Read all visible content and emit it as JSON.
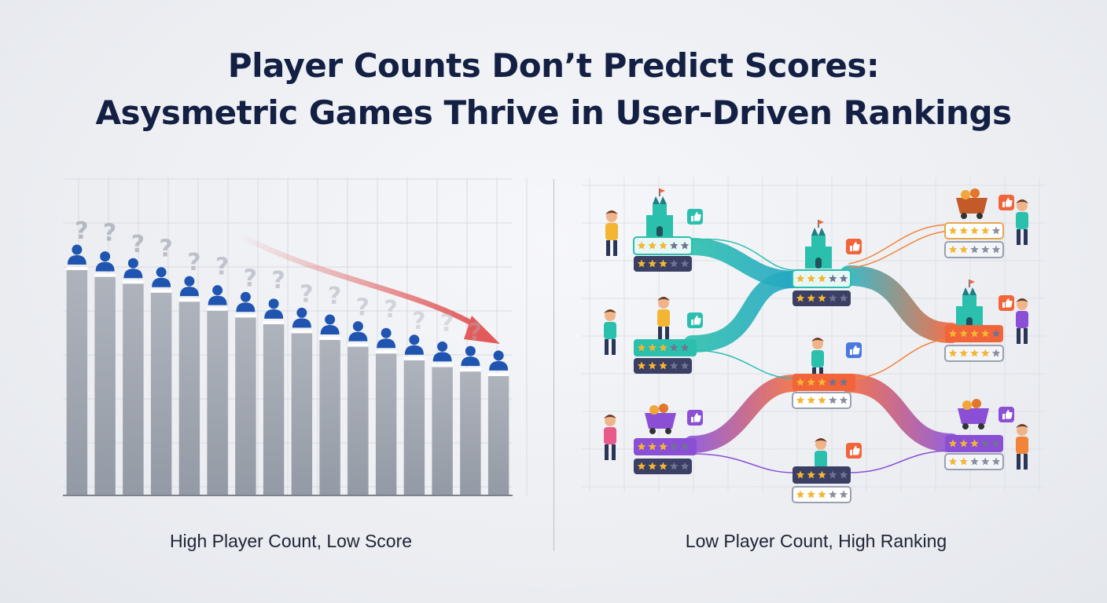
{
  "title": {
    "line1": "Player Counts Don’t Predict Scores:",
    "line2": "Asysmetric Games Thrive in User-Driven Rankings"
  },
  "left_panel": {
    "caption": "High Player Count, Low Score",
    "question_mark": "?",
    "bar_count": 16,
    "trend": "decreasing",
    "bar_color": "#a3a8b2",
    "player_icon_color": "#1f55b0",
    "arrow_color": "#e06060"
  },
  "right_panel": {
    "caption": "Low Player Count, High Ranking",
    "icons": [
      "castle-icon",
      "thumbs-up-icon",
      "player-figure-icon",
      "mine-cart-icon",
      "star-rating-icon"
    ],
    "colors": {
      "teal": "#2bbfae",
      "orange": "#f2643a",
      "purple": "#8b4fd6",
      "card": "#3a3f63",
      "star": "#f2b632"
    }
  },
  "chart_data": {
    "type": "bar",
    "title": "",
    "xlabel": "",
    "ylabel": "",
    "trend": "decreasing",
    "values": [
      1.0,
      0.97,
      0.94,
      0.9,
      0.86,
      0.82,
      0.79,
      0.76,
      0.72,
      0.69,
      0.66,
      0.63,
      0.6,
      0.57,
      0.55,
      0.53
    ]
  }
}
